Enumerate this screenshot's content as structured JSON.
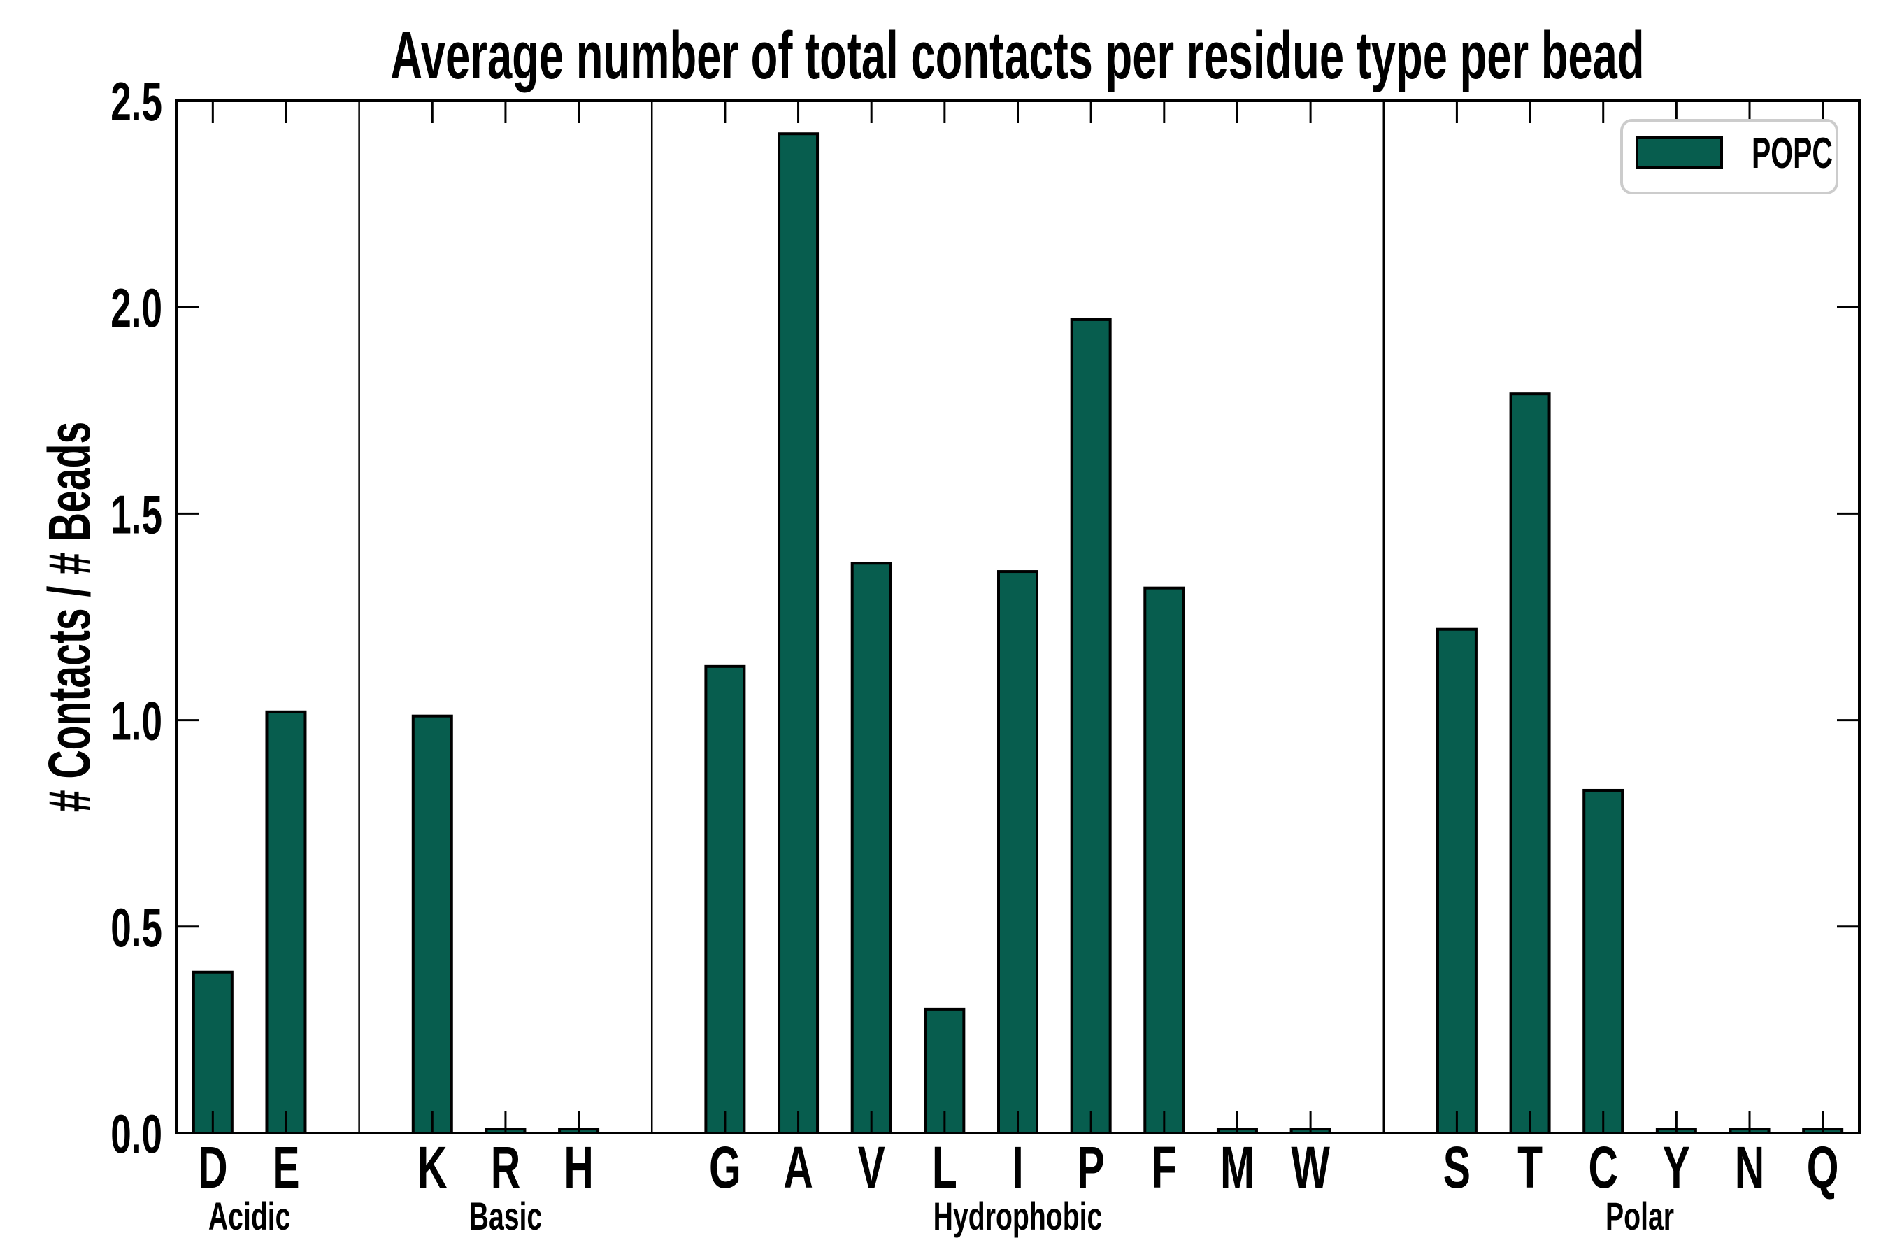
{
  "figure": {
    "title": "Average number of total contacts per residue type per bead",
    "ylabel": "# Contacts / # Beads",
    "legend_label": "POPC",
    "colors": {
      "bar_fill": "#075d4e",
      "bar_edge": "#000000",
      "axis": "#000000",
      "text": "#000000",
      "legend_border": "#cccccc",
      "background": "#ffffff"
    }
  },
  "chart_data": {
    "type": "bar",
    "title": "Average number of total contacts per residue type per bead",
    "xlabel": "",
    "ylabel": "# Contacts / # Beads",
    "ylim": [
      0.0,
      2.5
    ],
    "ytick_labels": [
      "0.0",
      "0.5",
      "1.0",
      "1.5",
      "2.0",
      "2.5"
    ],
    "grid": false,
    "legend_position": "upper right",
    "series_name": "POPC",
    "groups": [
      {
        "name": "Acidic",
        "categories": [
          "D",
          "E"
        ],
        "values": [
          0.39,
          1.02
        ]
      },
      {
        "name": "Basic",
        "categories": [
          "K",
          "R",
          "H"
        ],
        "values": [
          1.01,
          0.01,
          0.01
        ]
      },
      {
        "name": "Hydrophobic",
        "categories": [
          "G",
          "A",
          "V",
          "L",
          "I",
          "P",
          "F",
          "M",
          "W"
        ],
        "values": [
          1.13,
          2.42,
          1.38,
          0.3,
          1.36,
          1.97,
          1.32,
          0.01,
          0.01
        ]
      },
      {
        "name": "Polar",
        "categories": [
          "S",
          "T",
          "C",
          "Y",
          "N",
          "Q"
        ],
        "values": [
          1.22,
          1.79,
          0.83,
          0.01,
          0.01,
          0.01
        ]
      }
    ]
  }
}
